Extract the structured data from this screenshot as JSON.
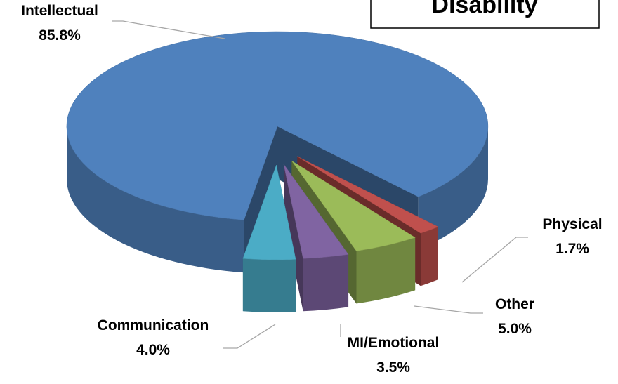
{
  "chart_data": {
    "type": "pie",
    "title": "Disability",
    "categories": [
      "Intellectual",
      "Communication",
      "MI/Emotional",
      "Other",
      "Physical"
    ],
    "values": [
      85.8,
      4.0,
      3.5,
      5.0,
      1.7
    ],
    "value_labels": [
      "85.8%",
      "4.0%",
      "3.5%",
      "5.0%",
      "1.7%"
    ],
    "colors": [
      "#4f81bd",
      "#4bacc6",
      "#8064a2",
      "#9bbb59",
      "#c0504d"
    ]
  }
}
